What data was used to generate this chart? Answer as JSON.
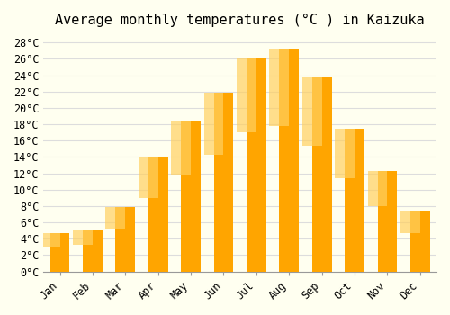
{
  "title": "Average monthly temperatures (°C ) in Kaizuka",
  "months": [
    "Jan",
    "Feb",
    "Mar",
    "Apr",
    "May",
    "Jun",
    "Jul",
    "Aug",
    "Sep",
    "Oct",
    "Nov",
    "Dec"
  ],
  "temperatures": [
    4.7,
    5.0,
    7.9,
    13.9,
    18.3,
    21.9,
    26.2,
    27.3,
    23.7,
    17.5,
    12.3,
    7.3
  ],
  "bar_color": "#FFA500",
  "bar_color_top": "#FFD060",
  "background_color": "#FFFFF0",
  "grid_color": "#DDDDDD",
  "ylim": [
    0,
    29
  ],
  "ytick_step": 2,
  "title_fontsize": 11,
  "tick_fontsize": 8.5,
  "font_family": "monospace"
}
